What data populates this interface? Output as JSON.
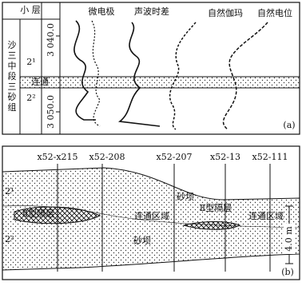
{
  "panel_a": {
    "layer_header": "小 层",
    "curves": [
      "微电极",
      "声波时差",
      "自然伽玛",
      "自然电位"
    ],
    "formation": "沙三中段三砂组",
    "sublayers": [
      "2¹",
      "连通",
      "2²"
    ],
    "depths": [
      "3 040.0",
      "3 050.0"
    ],
    "label": "(a)"
  },
  "panel_b": {
    "wells": [
      "x52-x215",
      "x52-208",
      "x52-207",
      "x52-13",
      "x52-111"
    ],
    "layers": [
      "2¹",
      "2²"
    ],
    "annotations": [
      "砂坝",
      "Ⅱ型隔层",
      "连通区域",
      "Ⅱ型隔层",
      "连通区域",
      "砂坝"
    ],
    "scale": "4.0 m",
    "label": "(b)"
  }
}
